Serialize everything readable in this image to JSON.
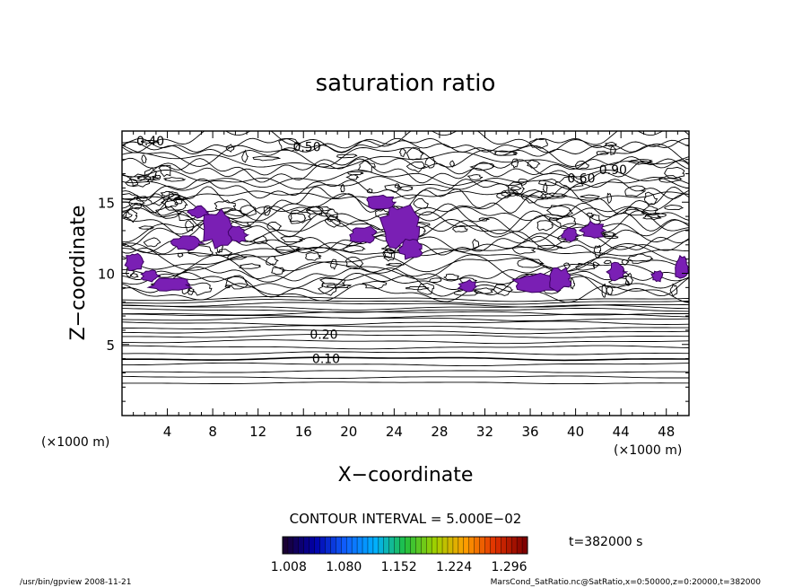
{
  "chart_data": {
    "type": "contour",
    "title": "saturation ratio",
    "xlabel": "X−coordinate",
    "ylabel": "Z−coordinate",
    "x_unit_left": "(×1000 m)",
    "x_unit_right": "(×1000 m)",
    "xlim": [
      0,
      50
    ],
    "ylim": [
      0,
      20
    ],
    "xticks": [
      4,
      8,
      12,
      16,
      20,
      24,
      28,
      32,
      36,
      40,
      44,
      48
    ],
    "yticks": [
      5,
      10,
      15
    ],
    "contour_interval_text": "CONTOUR INTERVAL = 5.000E−02",
    "contour_labels": [
      "0.10",
      "0.20",
      "0.40",
      "0.50",
      "0.60",
      "0.90"
    ],
    "layered_contours": [
      {
        "z": 2.3,
        "amp": 0.05
      },
      {
        "z": 2.7,
        "amp": 0.06
      },
      {
        "z": 3.1,
        "amp": 0.06
      },
      {
        "z": 3.6,
        "amp": 0.07
      },
      {
        "z": 4.0,
        "amp": 0.08,
        "label": "0.10",
        "bold": true
      },
      {
        "z": 4.4,
        "amp": 0.08
      },
      {
        "z": 4.8,
        "amp": 0.08
      },
      {
        "z": 5.2,
        "amp": 0.09
      },
      {
        "z": 5.6,
        "amp": 0.09
      },
      {
        "z": 5.9,
        "amp": 0.1,
        "label": "0.20"
      },
      {
        "z": 6.2,
        "amp": 0.1
      },
      {
        "z": 6.5,
        "amp": 0.1
      },
      {
        "z": 6.8,
        "amp": 0.1
      },
      {
        "z": 7.0,
        "amp": 0.1
      },
      {
        "z": 7.2,
        "amp": 0.1
      },
      {
        "z": 7.4,
        "amp": 0.1
      },
      {
        "z": 7.6,
        "amp": 0.12
      },
      {
        "z": 7.8,
        "amp": 0.12
      },
      {
        "z": 8.0,
        "amp": 0.12
      },
      {
        "z": 8.2,
        "amp": 0.12
      }
    ],
    "supersaturated_regions": [
      {
        "cx": 6.8,
        "cz": 14.3,
        "rx": 0.9,
        "rz": 0.4
      },
      {
        "cx": 8.5,
        "cz": 13.2,
        "rx": 1.5,
        "rz": 1.3
      },
      {
        "cx": 5.6,
        "cz": 12.1,
        "rx": 1.4,
        "rz": 0.5
      },
      {
        "cx": 10.2,
        "cz": 12.7,
        "rx": 0.8,
        "rz": 0.6
      },
      {
        "cx": 1.0,
        "cz": 10.8,
        "rx": 0.8,
        "rz": 0.7
      },
      {
        "cx": 4.2,
        "cz": 9.2,
        "rx": 1.8,
        "rz": 0.5
      },
      {
        "cx": 2.5,
        "cz": 9.8,
        "rx": 0.8,
        "rz": 0.4
      },
      {
        "cx": 24.5,
        "cz": 13.3,
        "rx": 1.7,
        "rz": 1.6
      },
      {
        "cx": 25.5,
        "cz": 11.7,
        "rx": 1.0,
        "rz": 0.8
      },
      {
        "cx": 21.2,
        "cz": 12.7,
        "rx": 1.2,
        "rz": 0.6
      },
      {
        "cx": 22.8,
        "cz": 15.0,
        "rx": 1.3,
        "rz": 0.5
      },
      {
        "cx": 36.5,
        "cz": 9.3,
        "rx": 2.2,
        "rz": 0.7
      },
      {
        "cx": 38.6,
        "cz": 9.6,
        "rx": 1.0,
        "rz": 0.8
      },
      {
        "cx": 39.5,
        "cz": 12.7,
        "rx": 0.7,
        "rz": 0.5
      },
      {
        "cx": 41.5,
        "cz": 13.0,
        "rx": 1.1,
        "rz": 0.6
      },
      {
        "cx": 30.5,
        "cz": 9.1,
        "rx": 0.8,
        "rz": 0.4
      },
      {
        "cx": 43.6,
        "cz": 10.1,
        "rx": 0.8,
        "rz": 0.6
      },
      {
        "cx": 49.3,
        "cz": 10.4,
        "rx": 0.6,
        "rz": 0.9
      },
      {
        "cx": 47.2,
        "cz": 9.8,
        "rx": 0.5,
        "rz": 0.4
      }
    ],
    "colorbar": {
      "ticks": [
        "1.008",
        "1.080",
        "1.152",
        "1.224",
        "1.296"
      ],
      "min": 1.0,
      "max": 1.32,
      "colors_stops": [
        "#1a0033",
        "#0000aa",
        "#1060ff",
        "#00b0ff",
        "#20c040",
        "#a0d000",
        "#ffa000",
        "#e03000",
        "#800000"
      ]
    },
    "time_text": "t=382000 s"
  },
  "footer": {
    "left": "/usr/bin/gpview   2008-11-21",
    "right": "MarsCond_SatRatio.nc@SatRatio,x=0:50000,z=0:20000,t=382000"
  },
  "colors": {
    "fill": "#7a1fb4",
    "fill_stroke": "#3a0060",
    "axes": "#000000"
  }
}
